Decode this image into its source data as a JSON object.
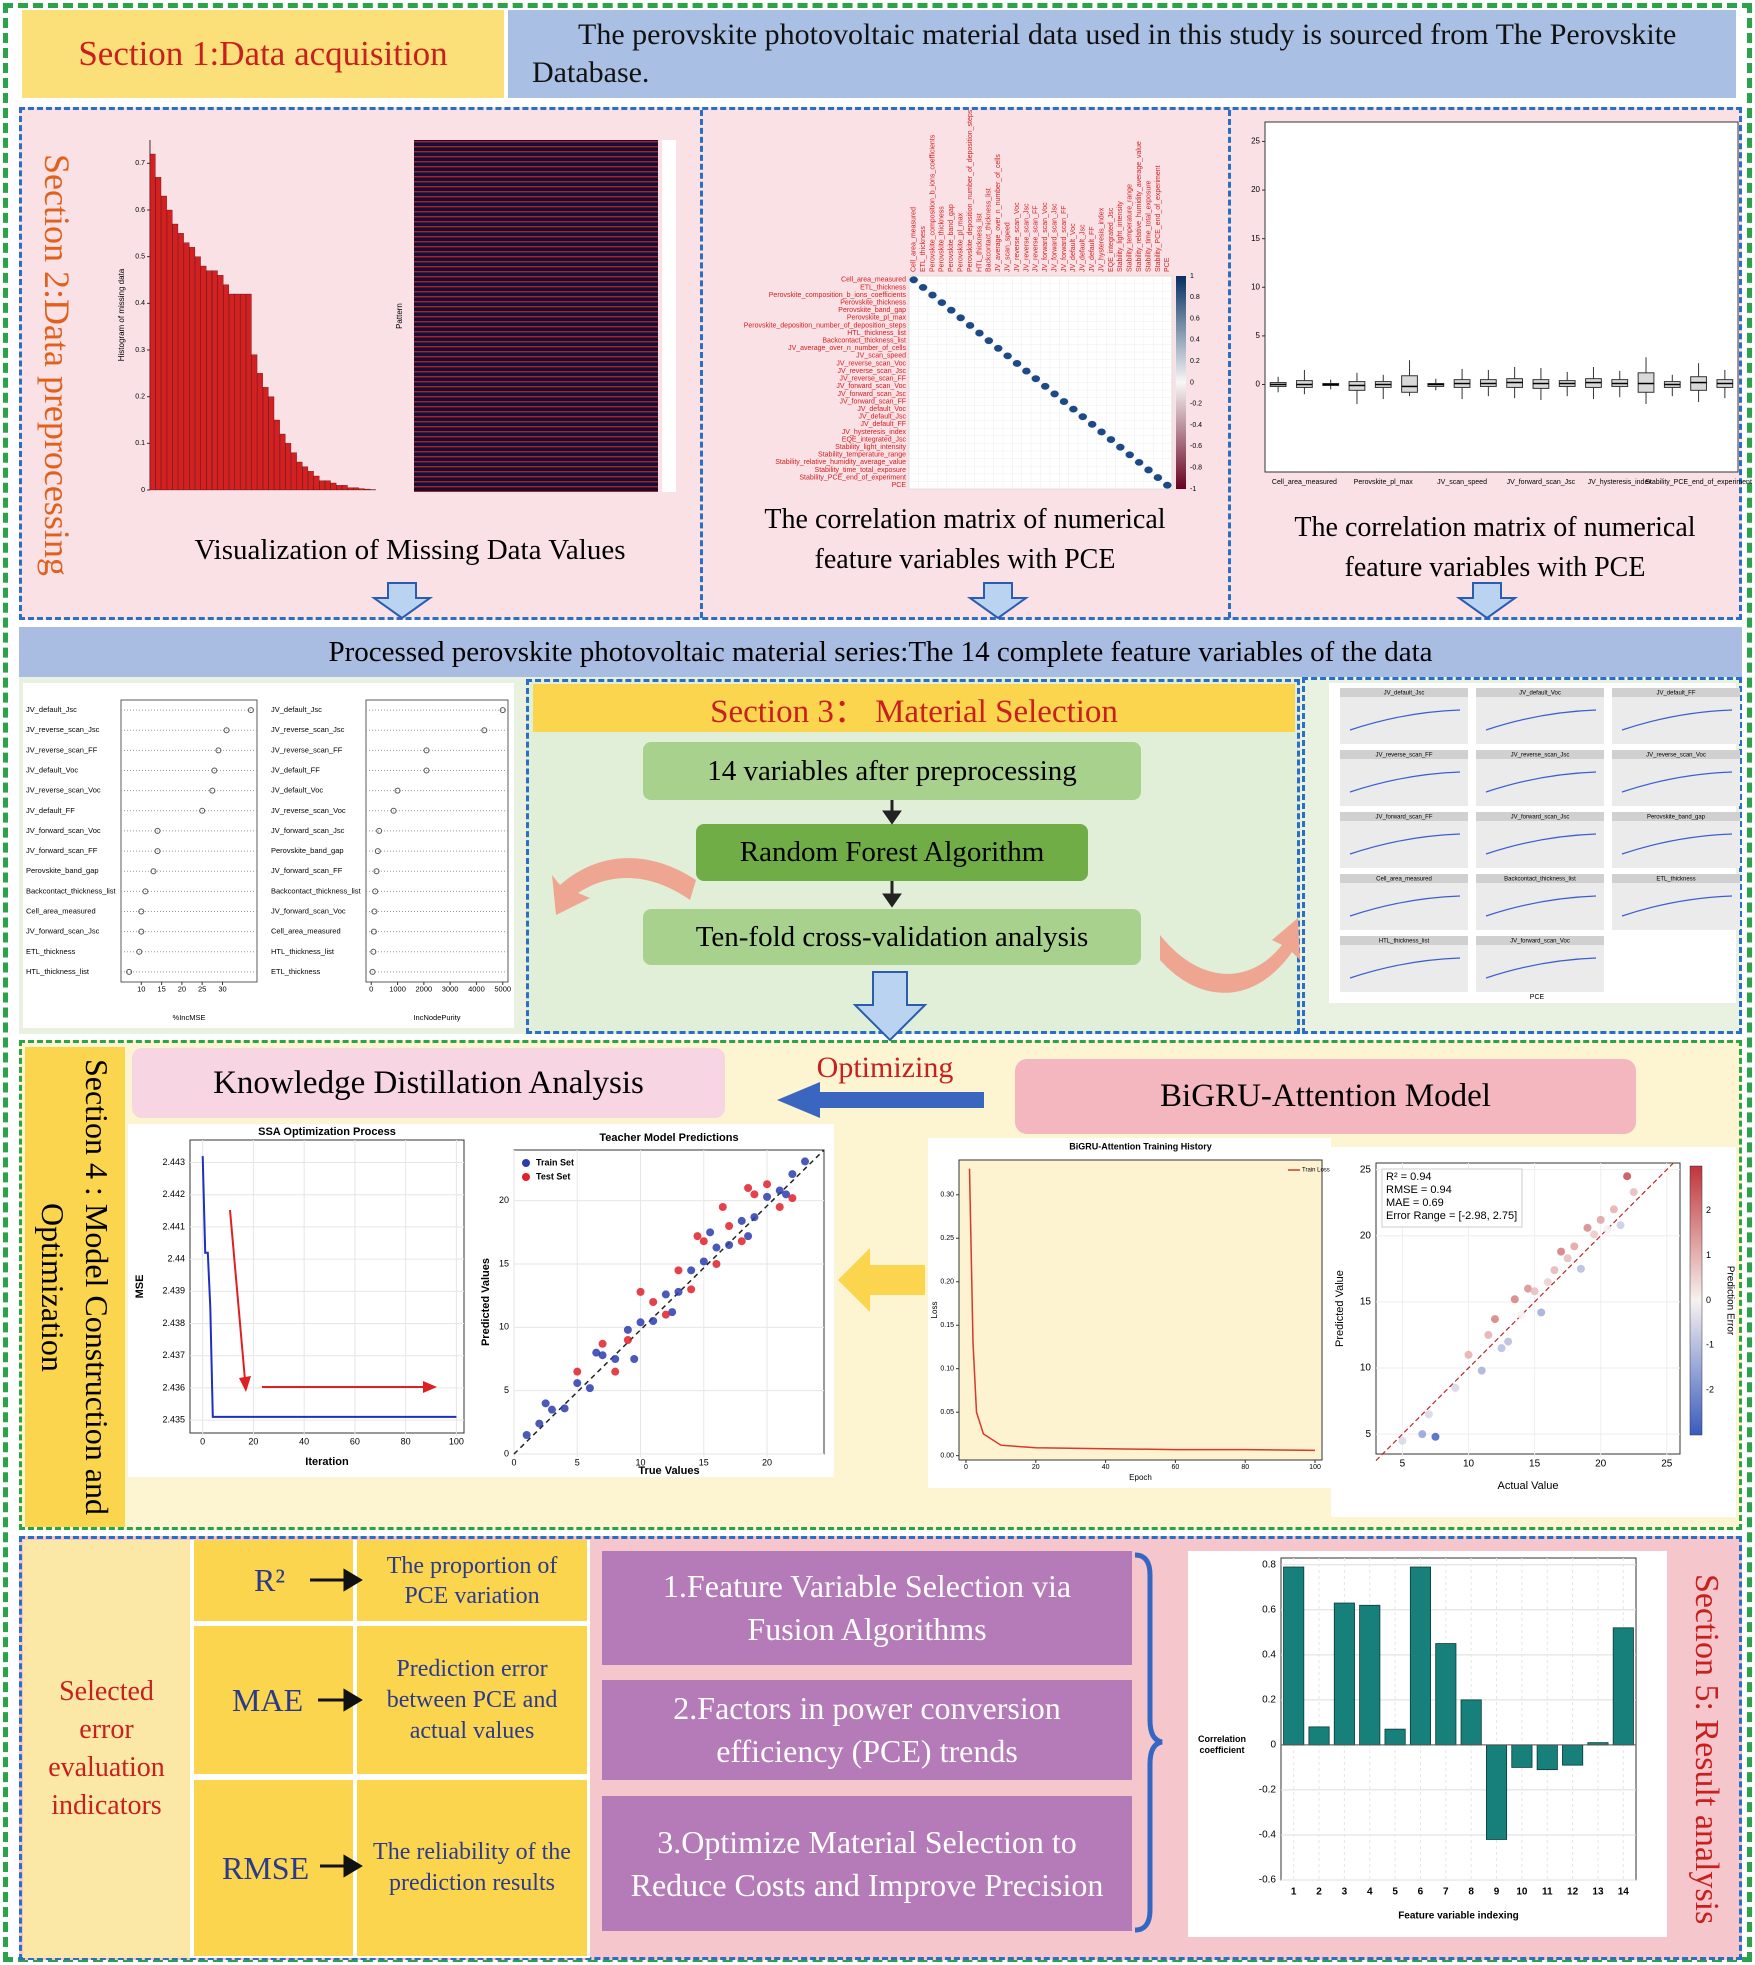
{
  "section1": {
    "label": "Section 1:Data acquisition",
    "text": "The perovskite photovoltaic material data used in this study is sourced from The Perovskite Database."
  },
  "section2": {
    "label": "Section 2:Data preprocessing",
    "missing_chart": {
      "type": "bar",
      "ylabel": "Histogram of missing data",
      "pattern_label": "Pattern",
      "color": "#d42020",
      "values": [
        0.72,
        0.67,
        0.63,
        0.6,
        0.57,
        0.55,
        0.53,
        0.52,
        0.5,
        0.48,
        0.47,
        0.47,
        0.46,
        0.44,
        0.42,
        0.42,
        0.42,
        0.42,
        0.29,
        0.25,
        0.22,
        0.2,
        0.15,
        0.12,
        0.1,
        0.08,
        0.06,
        0.05,
        0.04,
        0.03,
        0.02,
        0.02,
        0.015,
        0.01,
        0.01,
        0.005,
        0.005,
        0.003,
        0.002,
        0.001
      ],
      "ylim": [
        0,
        0.75
      ],
      "yticks": [
        0,
        0.1,
        0.2,
        0.3,
        0.4,
        0.5,
        0.6,
        0.7
      ]
    },
    "missing_caption": "Visualization of Missing Data Values",
    "correlation": {
      "variables": [
        "Cell_area_measured",
        "ETL_thickness",
        "Perovskite_composition_b_ions_coefficients",
        "Perovskite_thickness",
        "Perovskite_band_gap",
        "Perovskite_pl_max",
        "Perovskite_deposition_number_of_deposition_steps",
        "HTL_thickness_list",
        "Backcontact_thickness_list",
        "JV_average_over_n_number_of_cells",
        "JV_scan_speed",
        "JV_reverse_scan_Voc",
        "JV_reverse_scan_Jsc",
        "JV_reverse_scan_FF",
        "JV_forward_scan_Voc",
        "JV_forward_scan_Jsc",
        "JV_forward_scan_FF",
        "JV_default_Voc",
        "JV_default_Jsc",
        "JV_default_FF",
        "JV_hysteresis_index",
        "EQE_integrated_Jsc",
        "Stability_light_intensity",
        "Stability_temperature_range",
        "Stability_relative_humidity_average_value",
        "Stability_time_total_exposure",
        "Stability_PCE_end_of_experiment",
        "PCE"
      ],
      "colorbar_ticks": [
        1,
        0.8,
        0.6,
        0.4,
        0.2,
        0,
        -0.2,
        -0.4,
        -0.6,
        -0.8,
        -1
      ]
    },
    "correlation_caption": "The correlation matrix of numerical feature variables with PCE",
    "boxplot": {
      "categories": [
        null,
        "Cell_area_measured",
        null,
        null,
        "Perovskite_pl_max",
        null,
        null,
        "JV_scan_speed",
        null,
        null,
        "JV_forward_scan_Jsc",
        null,
        null,
        "JV_hysteresis_index",
        null,
        null,
        "Stability_PCE_end_of_experiment",
        null
      ],
      "boxes": [
        [
          -0.8,
          -0.2,
          0,
          0.2,
          0.8
        ],
        [
          -1,
          -0.3,
          0,
          0.4,
          1.5
        ],
        [
          -0.5,
          -0.1,
          0,
          0.1,
          0.5
        ],
        [
          -2,
          -0.6,
          -0.1,
          0.3,
          1.2
        ],
        [
          -1.5,
          -0.3,
          0,
          0.3,
          1
        ],
        [
          -1.2,
          -0.8,
          -0.2,
          0.9,
          2.5
        ],
        [
          -0.6,
          -0.2,
          0,
          0.1,
          0.6
        ],
        [
          -1.5,
          -0.3,
          0.1,
          0.5,
          1.6
        ],
        [
          -1.2,
          -0.2,
          0.1,
          0.5,
          1.5
        ],
        [
          -1.4,
          -0.3,
          0.2,
          0.6,
          1.8
        ],
        [
          -1.6,
          -0.4,
          0.1,
          0.5,
          1.7
        ],
        [
          -1.2,
          -0.2,
          0.1,
          0.4,
          1.3
        ],
        [
          -1.5,
          -0.3,
          0.2,
          0.6,
          1.8
        ],
        [
          -1.3,
          -0.2,
          0.1,
          0.5,
          1.4
        ],
        [
          -2,
          -0.8,
          0.1,
          1.2,
          2.8
        ],
        [
          -1.2,
          -0.3,
          0,
          0.3,
          1
        ],
        [
          -1.8,
          -0.6,
          0.2,
          0.8,
          2.2
        ],
        [
          -1.4,
          -0.3,
          0.1,
          0.5,
          1.5
        ]
      ],
      "ylim": [
        -9,
        27
      ],
      "yticks": [
        0,
        5,
        10,
        15,
        20,
        25
      ]
    },
    "boxplot_caption": "The correlation matrix of numerical feature variables with PCE"
  },
  "banner": "Processed perovskite photovoltaic material series:The 14 complete feature variables of the data",
  "section3": {
    "title": "Section 3： Material Selection",
    "steps": [
      "14 variables after preprocessing",
      "Random Forest Algorithm",
      "Ten-fold cross-validation analysis"
    ],
    "importance": [
      {
        "variables": [
          "JV_default_Jsc",
          "JV_reverse_scan_Jsc",
          "JV_reverse_scan_FF",
          "JV_default_Voc",
          "JV_reverse_scan_Voc",
          "JV_default_FF",
          "JV_forward_scan_Voc",
          "JV_forward_scan_FF",
          "Perovskite_band_gap",
          "Backcontact_thickness_list",
          "Cell_area_measured",
          "JV_forward_scan_Jsc",
          "ETL_thickness",
          "HTL_thickness_list"
        ],
        "values": [
          37,
          31,
          29,
          28,
          27.5,
          25,
          14,
          14,
          13,
          11,
          10,
          10,
          9.5,
          7
        ],
        "xlim": [
          5,
          38.5
        ],
        "xticks": [
          10,
          15,
          20,
          25,
          30
        ],
        "xlabel": "%IncMSE"
      },
      {
        "variables": [
          "JV_default_Jsc",
          "JV_reverse_scan_Jsc",
          "JV_reverse_scan_FF",
          "JV_default_FF",
          "JV_default_Voc",
          "JV_reverse_scan_Voc",
          "JV_forward_scan_Jsc",
          "Perovskite_band_gap",
          "JV_forward_scan_FF",
          "Backcontact_thickness_list",
          "JV_forward_scan_Voc",
          "Cell_area_measured",
          "HTL_thickness_list",
          "ETL_thickness"
        ],
        "values": [
          5000,
          4300,
          2100,
          2100,
          1000,
          850,
          300,
          250,
          200,
          150,
          120,
          100,
          80,
          50
        ],
        "xlim": [
          -200,
          5200
        ],
        "xticks": [
          0,
          1000,
          2000,
          3000,
          4000,
          5000
        ],
        "xlabel": "IncNodePurity"
      }
    ],
    "scatter_panels": [
      "JV_default_Jsc",
      "JV_default_Voc",
      "JV_default_FF",
      "JV_reverse_scan_FF",
      "JV_reverse_scan_Jsc",
      "JV_reverse_scan_Voc",
      "JV_forward_scan_FF",
      "JV_forward_scan_Jsc",
      "Perovskite_band_gap",
      "Cell_area_measured",
      "Backcontact_thickness_list",
      "ETL_thickness",
      "HTL_thickness_list",
      "JV_forward_scan_Voc"
    ],
    "scatter_xlabel": "PCE"
  },
  "section4": {
    "label": "Section 4 : Model Construction and Optimization",
    "kd": "Knowledge Distillation Analysis",
    "arrow_text": "Optimizing",
    "model": "BiGRU-Attention Model",
    "ssa": {
      "type": "line",
      "title": "SSA Optimization Process",
      "xlabel": "Iteration",
      "ylabel": "MSE",
      "color": "#1f2fbf",
      "x": [
        0,
        1,
        2,
        3,
        4,
        100
      ],
      "values": [
        2.4432,
        2.4402,
        2.4402,
        2.4385,
        2.4351,
        2.4351
      ],
      "xlim": [
        -5,
        103
      ],
      "ylim": [
        2.4346,
        2.4437
      ],
      "xticks": [
        0,
        20,
        40,
        60,
        80,
        100
      ],
      "yticks": [
        2.435,
        2.436,
        2.437,
        2.438,
        2.439,
        2.44,
        {
          "value": 2.441,
          "label": "2.441"
        },
        2.442,
        2.443
      ]
    },
    "teacher": {
      "type": "scatter",
      "title": "Teacher Model Predictions",
      "xlabel": "True Values",
      "ylabel": "Predicted Values",
      "xlim": [
        0,
        24.5
      ],
      "ylim": [
        0,
        24
      ],
      "xticks": [
        0,
        5,
        10,
        15,
        20
      ],
      "yticks": [
        0,
        5,
        10,
        15,
        20
      ],
      "series": [
        {
          "name": "Train Set",
          "color": "#2b3cae",
          "x": [
            1,
            2,
            3,
            4,
            5,
            6,
            7,
            8,
            9,
            10,
            11,
            12,
            13,
            14,
            15,
            16,
            17,
            18,
            19,
            20,
            21,
            22,
            23,
            2.5,
            6.5,
            9.5,
            12.5,
            15.5,
            18.5,
            21.5
          ],
          "values": [
            1.5,
            2.4,
            3.5,
            3.6,
            5.6,
            5.2,
            7.8,
            7.5,
            9.8,
            10.4,
            10.5,
            12.6,
            12.8,
            14.5,
            15.2,
            16.3,
            16.5,
            18.4,
            18.7,
            20.3,
            20.8,
            22.1,
            23.1,
            4,
            8,
            7.5,
            11.2,
            17.5,
            17.2,
            20.5
          ]
        },
        {
          "name": "Test Set",
          "color": "#e0202a",
          "x": [
            5,
            7,
            9,
            11,
            12,
            13,
            14,
            15,
            16,
            16.5,
            17,
            18,
            19,
            20,
            21,
            22,
            8,
            10,
            14.5,
            18.5
          ],
          "values": [
            6.5,
            8.7,
            9,
            12,
            11,
            14.5,
            13,
            16.8,
            15,
            19.5,
            18,
            16.8,
            20.5,
            21.3,
            19.5,
            20.2,
            6.5,
            12.8,
            17.2,
            21
          ]
        }
      ]
    },
    "loss": {
      "type": "line",
      "title": "BiGRU-Attention Training History",
      "xlabel": "Epoch",
      "ylabel": "Loss",
      "legend": "Train Loss",
      "color": "#d63a2a",
      "x": [
        1,
        2,
        3,
        5,
        10,
        20,
        40,
        60,
        80,
        100
      ],
      "values": [
        0.33,
        0.13,
        0.05,
        0.025,
        0.012,
        0.009,
        0.008,
        0.007,
        0.007,
        0.006
      ],
      "xlim": [
        -2,
        102
      ],
      "ylim": [
        -0.005,
        0.34
      ],
      "xticks": [
        0,
        20,
        40,
        60,
        80,
        100
      ],
      "yticks": [
        {
          "value": 0.3,
          "label": "0.30"
        },
        0.25,
        {
          "value": 0.2,
          "label": "0.20"
        },
        0.15,
        {
          "value": 0.1,
          "label": "0.10"
        },
        0.05,
        {
          "value": 0,
          "label": "0.00"
        }
      ]
    },
    "actual": {
      "type": "scatter",
      "xlabel": "Actual Value",
      "ylabel": "Predicted Value",
      "colorbar_label": "Prediction Error",
      "metrics": [
        "R² = 0.94",
        "RMSE = 0.94",
        "MAE = 0.69",
        "Error Range = [-2.98, 2.75]"
      ],
      "x": [
        5,
        6.5,
        7,
        7.5,
        9,
        10,
        11,
        11.5,
        12,
        12.5,
        13,
        13.5,
        14,
        14.5,
        15,
        15.5,
        16,
        16.5,
        17,
        17.5,
        18,
        18.5,
        19,
        19.5,
        20,
        20.5,
        21,
        21.5,
        22,
        22.5
      ],
      "values": [
        4.5,
        5,
        6.5,
        4.8,
        8.5,
        11,
        9.8,
        12.5,
        13.7,
        11.5,
        12,
        15.2,
        14,
        16,
        15.8,
        14.2,
        16.5,
        17.4,
        18.8,
        18.3,
        19.2,
        17.5,
        20.6,
        20.1,
        21.2,
        20.5,
        22,
        20.8,
        24.5,
        23.3
      ],
      "xlim": [
        3,
        26
      ],
      "ylim": [
        3.5,
        25.5
      ],
      "xticks": [
        5,
        10,
        15,
        20,
        25
      ],
      "yticks": [
        5,
        10,
        15,
        20,
        25
      ],
      "colorbar_lim": [
        -3,
        3
      ],
      "colorbar_ticks": [
        -2,
        -1,
        0,
        1,
        2
      ]
    }
  },
  "section5": {
    "label": "Section 5: Result analysis",
    "indicators_label": "Selected error evaluation indicators",
    "metrics": [
      {
        "name": "R²",
        "description": "The proportion of PCE variation"
      },
      {
        "name": "MAE",
        "description": "Prediction error between PCE and actual values"
      },
      {
        "name": "RMSE",
        "description": "The reliability of the prediction results"
      }
    ],
    "findings": [
      "1.Feature Variable Selection via Fusion Algorithms",
      "2.Factors in power conversion efficiency (PCE) trends",
      "3.Optimize Material Selection to Reduce Costs and Improve Precision"
    ],
    "bar_chart": {
      "type": "bar",
      "ylabel": "Correlation coefficient",
      "xlabel": "Feature variable indexing",
      "color": "#17807a",
      "categories": [
        "1",
        "2",
        "3",
        "4",
        "5",
        "6",
        "7",
        "8",
        "9",
        "10",
        "11",
        "12",
        "13",
        "14"
      ],
      "values": [
        0.79,
        0.08,
        0.63,
        0.62,
        0.07,
        0.79,
        0.45,
        0.2,
        -0.42,
        -0.1,
        -0.11,
        -0.09,
        0.01,
        0.52
      ],
      "ylim": [
        -0.6,
        0.83
      ],
      "yticks": [
        -0.6,
        -0.4,
        -0.2,
        0,
        0.2,
        0.4,
        0.6,
        0.8
      ]
    }
  }
}
